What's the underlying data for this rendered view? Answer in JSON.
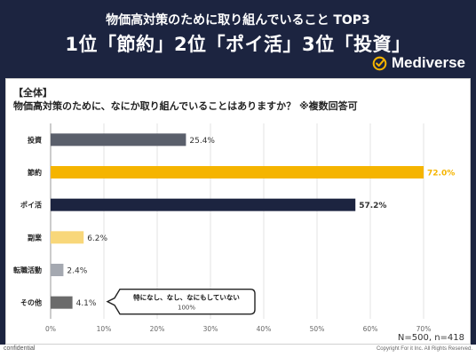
{
  "header": {
    "title_line1": "物価高対策のために取り組んでいること TOP3",
    "title_line2": "1位「節約」2位「ポイ活」3位「投資」",
    "brand": "Mediverse"
  },
  "question": {
    "tag": "【全体】",
    "text": "物価高対策のために、なにか取り組んでいることはありますか？ ※複数回答可"
  },
  "chart_data": {
    "type": "bar",
    "orientation": "horizontal",
    "categories": [
      "投資",
      "節約",
      "ポイ活",
      "副業",
      "転職活動",
      "その他"
    ],
    "values": [
      25.4,
      72.0,
      57.2,
      6.2,
      2.4,
      4.1
    ],
    "value_labels": [
      "25.4%",
      "72.0%",
      "57.2%",
      "6.2%",
      "2.4%",
      "4.1%"
    ],
    "colors": [
      "#5a5f6b",
      "#f5b400",
      "#1c2440",
      "#f8d77a",
      "#a4a8b0",
      "#6b6b6b"
    ],
    "xlim": [
      0,
      70
    ],
    "xticks": [
      0,
      10,
      20,
      30,
      40,
      50,
      60,
      70
    ],
    "xtick_labels": [
      "0%",
      "10%",
      "20%",
      "30%",
      "40%",
      "50%",
      "60%",
      "70%"
    ],
    "grid": true,
    "note": "N=500, n=418",
    "callout": {
      "text": "特になし、なし、なにもしていない",
      "value_label": "100%"
    }
  },
  "footer": {
    "left": "confidential",
    "right": "Copyright For it Inc. All Rights Reserved."
  }
}
